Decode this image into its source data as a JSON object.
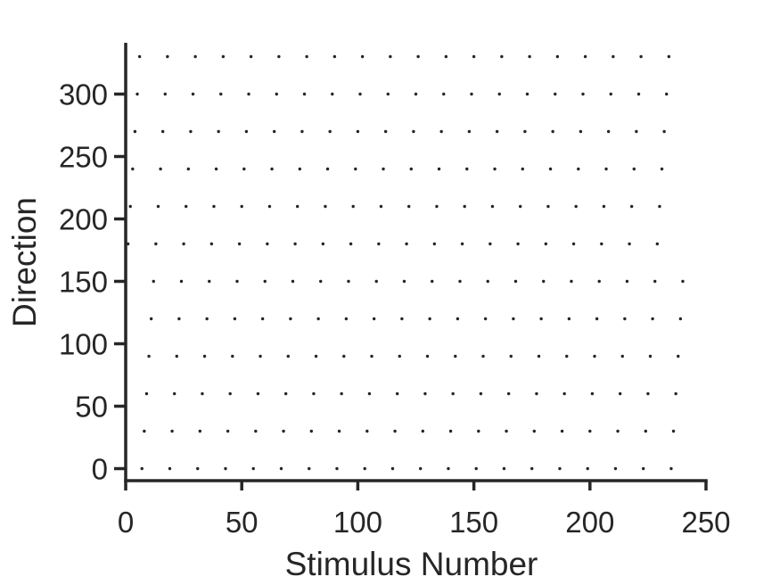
{
  "chart_data": {
    "type": "scatter",
    "title": "",
    "xlabel": "Stimulus Number",
    "ylabel": "Direction",
    "xlim": [
      0,
      250
    ],
    "ylim": [
      -5,
      340
    ],
    "xticks": [
      0,
      50,
      100,
      150,
      200,
      250
    ],
    "yticks": [
      0,
      50,
      100,
      150,
      200,
      250,
      300
    ],
    "grid": false,
    "marker_color": "#262626",
    "rows": [
      {
        "direction": 0,
        "x_start": 7,
        "x_step": 12,
        "count": 20
      },
      {
        "direction": 30,
        "x_start": 8,
        "x_step": 12,
        "count": 20
      },
      {
        "direction": 60,
        "x_start": 9,
        "x_step": 12,
        "count": 20
      },
      {
        "direction": 90,
        "x_start": 10,
        "x_step": 12,
        "count": 20
      },
      {
        "direction": 120,
        "x_start": 11,
        "x_step": 12,
        "count": 20
      },
      {
        "direction": 150,
        "x_start": 12,
        "x_step": 12,
        "count": 20
      },
      {
        "direction": 180,
        "x_start": 1,
        "x_step": 12,
        "count": 20
      },
      {
        "direction": 210,
        "x_start": 2,
        "x_step": 12,
        "count": 20
      },
      {
        "direction": 240,
        "x_start": 3,
        "x_step": 12,
        "count": 20
      },
      {
        "direction": 270,
        "x_start": 4,
        "x_step": 12,
        "count": 20
      },
      {
        "direction": 300,
        "x_start": 5,
        "x_step": 12,
        "count": 20
      },
      {
        "direction": 330,
        "x_start": 6,
        "x_step": 12,
        "count": 20
      }
    ]
  }
}
